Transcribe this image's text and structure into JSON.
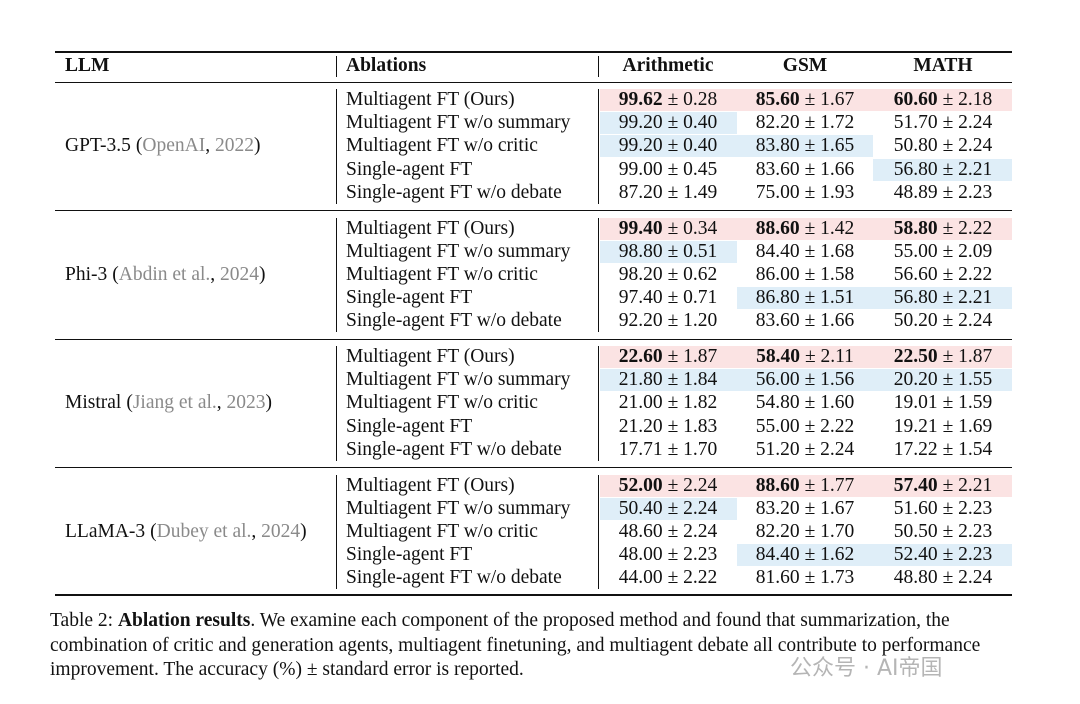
{
  "table": {
    "headers": [
      "LLM",
      "Ablations",
      "Arithmetic",
      "GSM",
      "MATH"
    ],
    "groups": [
      {
        "model": "GPT-3.5",
        "citation": [
          "(",
          "OpenAI",
          ", ",
          "2022",
          ")"
        ],
        "rows": [
          {
            "ablation": "Multiagent FT (Ours)",
            "cells": [
              {
                "mean": "99.62",
                "rest": "± 0.28",
                "mark": "best"
              },
              {
                "mean": "85.60",
                "rest": "± 1.67",
                "mark": "best"
              },
              {
                "mean": "60.60",
                "rest": "± 2.18",
                "mark": "best"
              }
            ]
          },
          {
            "ablation": "Multiagent FT w/o summary",
            "cells": [
              {
                "mean": "99.20",
                "rest": "± 0.40",
                "mark": "second"
              },
              {
                "mean": "82.20",
                "rest": "± 1.72"
              },
              {
                "mean": "51.70",
                "rest": "± 2.24"
              }
            ]
          },
          {
            "ablation": "Multiagent FT w/o critic",
            "cells": [
              {
                "mean": "99.20",
                "rest": "± 0.40",
                "mark": "second"
              },
              {
                "mean": "83.80",
                "rest": "± 1.65",
                "mark": "second"
              },
              {
                "mean": "50.80",
                "rest": "± 2.24"
              }
            ]
          },
          {
            "ablation": "Single-agent FT",
            "cells": [
              {
                "mean": "99.00",
                "rest": "± 0.45"
              },
              {
                "mean": "83.60",
                "rest": "± 1.66"
              },
              {
                "mean": "56.80",
                "rest": "± 2.21",
                "mark": "second"
              }
            ]
          },
          {
            "ablation": "Single-agent FT w/o debate",
            "cells": [
              {
                "mean": "87.20",
                "rest": "± 1.49"
              },
              {
                "mean": "75.00",
                "rest": "± 1.93"
              },
              {
                "mean": "48.89",
                "rest": "± 2.23"
              }
            ]
          }
        ]
      },
      {
        "model": "Phi-3",
        "citation": [
          "(",
          "Abdin et al.",
          ", ",
          "2024",
          ")"
        ],
        "rows": [
          {
            "ablation": "Multiagent FT (Ours)",
            "cells": [
              {
                "mean": "99.40",
                "rest": "± 0.34",
                "mark": "best"
              },
              {
                "mean": "88.60",
                "rest": "± 1.42",
                "mark": "best"
              },
              {
                "mean": "58.80",
                "rest": "± 2.22",
                "mark": "best"
              }
            ]
          },
          {
            "ablation": "Multiagent FT w/o summary",
            "cells": [
              {
                "mean": "98.80",
                "rest": "± 0.51",
                "mark": "second"
              },
              {
                "mean": "84.40",
                "rest": "± 1.68"
              },
              {
                "mean": "55.00",
                "rest": "± 2.09"
              }
            ]
          },
          {
            "ablation": "Multiagent FT w/o critic",
            "cells": [
              {
                "mean": "98.20",
                "rest": "± 0.62"
              },
              {
                "mean": "86.00",
                "rest": "± 1.58"
              },
              {
                "mean": "56.60",
                "rest": "± 2.22"
              }
            ]
          },
          {
            "ablation": "Single-agent FT",
            "cells": [
              {
                "mean": "97.40",
                "rest": "± 0.71"
              },
              {
                "mean": "86.80",
                "rest": "± 1.51",
                "mark": "second"
              },
              {
                "mean": "56.80",
                "rest": "± 2.21",
                "mark": "second"
              }
            ]
          },
          {
            "ablation": "Single-agent FT w/o debate",
            "cells": [
              {
                "mean": "92.20",
                "rest": "± 1.20"
              },
              {
                "mean": "83.60",
                "rest": "± 1.66"
              },
              {
                "mean": "50.20",
                "rest": "± 2.24"
              }
            ]
          }
        ]
      },
      {
        "model": "Mistral",
        "citation": [
          "(",
          "Jiang et al.",
          ", ",
          "2023",
          ")"
        ],
        "rows": [
          {
            "ablation": "Multiagent FT (Ours)",
            "cells": [
              {
                "mean": "22.60",
                "rest": "± 1.87",
                "mark": "best"
              },
              {
                "mean": "58.40",
                "rest": "± 2.11",
                "mark": "best"
              },
              {
                "mean": "22.50",
                "rest": "± 1.87",
                "mark": "best"
              }
            ]
          },
          {
            "ablation": "Multiagent FT w/o summary",
            "cells": [
              {
                "mean": "21.80",
                "rest": "± 1.84",
                "mark": "second"
              },
              {
                "mean": "56.00",
                "rest": "± 1.56",
                "mark": "second"
              },
              {
                "mean": "20.20",
                "rest": "± 1.55",
                "mark": "second"
              }
            ]
          },
          {
            "ablation": "Multiagent FT w/o critic",
            "cells": [
              {
                "mean": "21.00",
                "rest": "± 1.82"
              },
              {
                "mean": "54.80",
                "rest": "± 1.60"
              },
              {
                "mean": "19.01",
                "rest": "± 1.59"
              }
            ]
          },
          {
            "ablation": "Single-agent FT",
            "cells": [
              {
                "mean": "21.20",
                "rest": "± 1.83"
              },
              {
                "mean": "55.00",
                "rest": "± 2.22"
              },
              {
                "mean": "19.21",
                "rest": "± 1.69"
              }
            ]
          },
          {
            "ablation": "Single-agent FT w/o debate",
            "cells": [
              {
                "mean": "17.71",
                "rest": "± 1.70"
              },
              {
                "mean": "51.20",
                "rest": "± 2.24"
              },
              {
                "mean": "17.22",
                "rest": "± 1.54"
              }
            ]
          }
        ]
      },
      {
        "model": "LLaMA-3",
        "citation": [
          "(",
          "Dubey et al.",
          ", ",
          "2024",
          ")"
        ],
        "rows": [
          {
            "ablation": "Multiagent FT (Ours)",
            "cells": [
              {
                "mean": "52.00",
                "rest": "± 2.24",
                "mark": "best"
              },
              {
                "mean": "88.60",
                "rest": "± 1.77",
                "mark": "best"
              },
              {
                "mean": "57.40",
                "rest": "± 2.21",
                "mark": "best"
              }
            ]
          },
          {
            "ablation": "Multiagent FT w/o summary",
            "cells": [
              {
                "mean": "50.40",
                "rest": "± 2.24",
                "mark": "second"
              },
              {
                "mean": "83.20",
                "rest": "± 1.67"
              },
              {
                "mean": "51.60",
                "rest": "± 2.23"
              }
            ]
          },
          {
            "ablation": "Multiagent FT w/o critic",
            "cells": [
              {
                "mean": "48.60",
                "rest": "± 2.24"
              },
              {
                "mean": "82.20",
                "rest": "± 1.70"
              },
              {
                "mean": "50.50",
                "rest": "± 2.23"
              }
            ]
          },
          {
            "ablation": "Single-agent FT",
            "cells": [
              {
                "mean": "48.00",
                "rest": "± 2.23"
              },
              {
                "mean": "84.40",
                "rest": "± 1.62",
                "mark": "second"
              },
              {
                "mean": "52.40",
                "rest": "± 2.23",
                "mark": "second"
              }
            ]
          },
          {
            "ablation": "Single-agent FT w/o debate",
            "cells": [
              {
                "mean": "44.00",
                "rest": "± 2.22"
              },
              {
                "mean": "81.60",
                "rest": "± 1.73"
              },
              {
                "mean": "48.80",
                "rest": "± 2.24"
              }
            ]
          }
        ]
      }
    ]
  },
  "caption": {
    "label": "Table 2:",
    "title": "Ablation results",
    "text": ". We examine each component of the proposed method and found that summarization, the combination of critic and generation agents, multiagent finetuning, and multiagent debate all contribute to performance improvement. The accuracy (%) ± standard error is reported."
  },
  "watermark": "公众号 · AI帝国"
}
